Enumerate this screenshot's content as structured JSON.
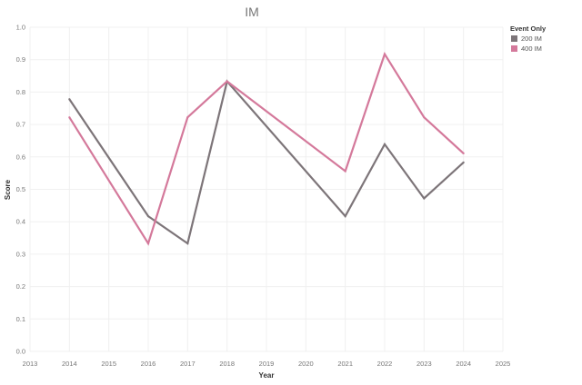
{
  "chart_data": {
    "type": "line",
    "title": "IM",
    "xlabel": "Year",
    "ylabel": "Score",
    "xlim": [
      2013,
      2025
    ],
    "ylim": [
      0,
      1.0
    ],
    "x_ticks": [
      "2013",
      "2014",
      "2015",
      "2016",
      "2017",
      "2018",
      "2019",
      "2020",
      "2021",
      "2022",
      "2023",
      "2024",
      "2025"
    ],
    "y_ticks": [
      "0.0",
      "0.1",
      "0.2",
      "0.3",
      "0.4",
      "0.5",
      "0.6",
      "0.7",
      "0.8",
      "0.9",
      "1.0"
    ],
    "grid": true,
    "legend": {
      "title": "Event Only",
      "position": "top-right"
    },
    "series": [
      {
        "name": "200 IM",
        "color": "#7d7579",
        "x": [
          2014,
          2016,
          2017,
          2018,
          2021,
          2022,
          2023,
          2024
        ],
        "values": [
          0.778,
          0.417,
          0.333,
          0.833,
          0.417,
          0.639,
          0.472,
          0.583
        ]
      },
      {
        "name": "400 IM",
        "color": "#d4799b",
        "x": [
          2014,
          2016,
          2017,
          2018,
          2021,
          2022,
          2023,
          2024
        ],
        "values": [
          0.722,
          0.333,
          0.722,
          0.833,
          0.556,
          0.917,
          0.722,
          0.611
        ]
      }
    ]
  }
}
